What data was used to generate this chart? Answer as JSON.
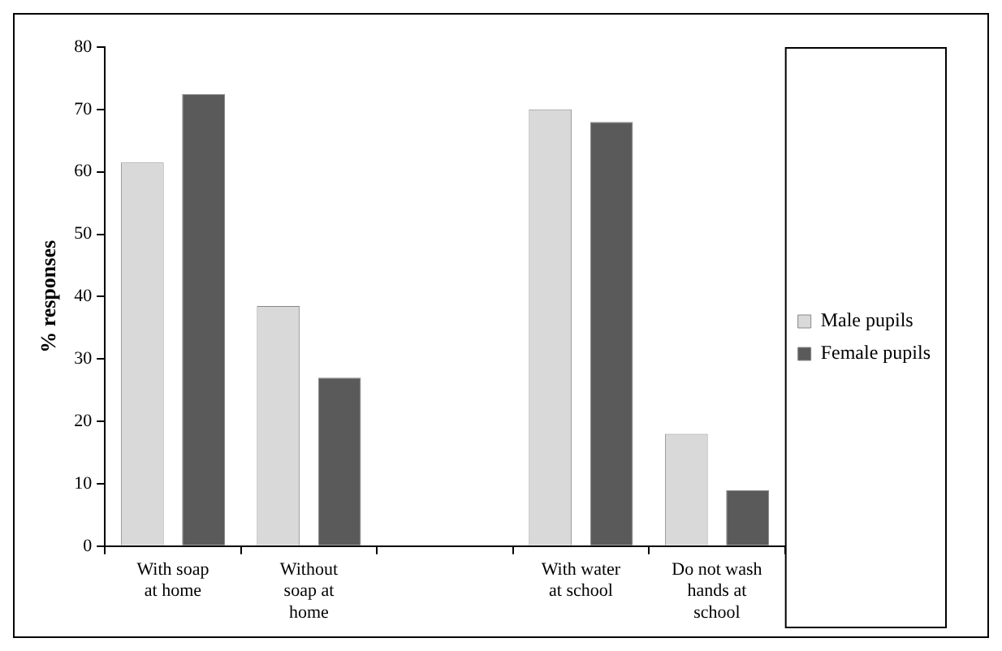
{
  "chart_data": {
    "type": "bar",
    "ylabel": "% responses",
    "categories": [
      "With soap at home",
      "Without soap at home",
      null,
      "With water at school",
      "Do not wash hands at school"
    ],
    "series": [
      {
        "name": "Male pupils",
        "color": "#d9d9d9",
        "values": [
          61.5,
          38.5,
          null,
          70,
          18
        ]
      },
      {
        "name": "Female pupils",
        "color": "#5a5a5a",
        "values": [
          72.5,
          27,
          null,
          68,
          9
        ]
      }
    ],
    "ylim": [
      0,
      80
    ],
    "yticks": [
      0,
      10,
      20,
      30,
      40,
      50,
      60,
      70,
      80
    ],
    "grid": false,
    "legend": "right"
  }
}
